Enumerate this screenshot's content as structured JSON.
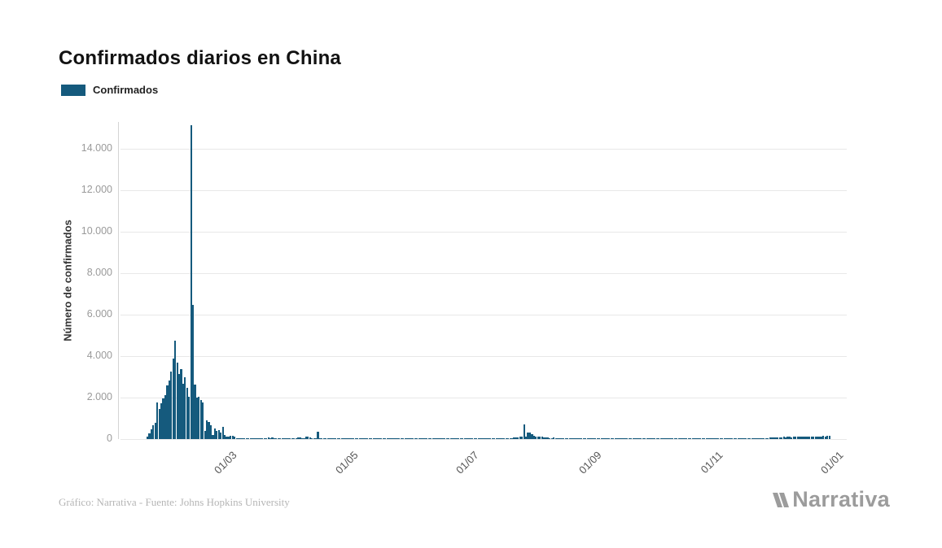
{
  "header": {
    "title": "Confirmados diarios en China"
  },
  "legend": {
    "label": "Confirmados",
    "color": "#155a7d"
  },
  "footer": {
    "credit": "Gráfico: Narrativa - Fuente: Johns Hopkins University",
    "brand": "Narrativa"
  },
  "chart_data": {
    "type": "bar",
    "title": "Confirmados diarios en China",
    "xlabel": "",
    "ylabel": "Número de confirmados",
    "legend_entries": [
      "Confirmados"
    ],
    "legend_position": "top-left",
    "grid": "horizontal",
    "bar_color": "#155a7d",
    "ylim": [
      0,
      15200
    ],
    "y_ticks": [
      {
        "value": 0,
        "label": "0"
      },
      {
        "value": 2000,
        "label": "2.000"
      },
      {
        "value": 4000,
        "label": "4.000"
      },
      {
        "value": 6000,
        "label": "6.000"
      },
      {
        "value": 8000,
        "label": "8.000"
      },
      {
        "value": 10000,
        "label": "10.000"
      },
      {
        "value": 12000,
        "label": "12.000"
      },
      {
        "value": 14000,
        "label": "14.000"
      }
    ],
    "x_ticks": [
      {
        "label": "01/03",
        "day_index": 39
      },
      {
        "label": "01/05",
        "day_index": 100
      },
      {
        "label": "01/07",
        "day_index": 161
      },
      {
        "label": "01/09",
        "day_index": 223
      },
      {
        "label": "01/11",
        "day_index": 284
      },
      {
        "label": "01/01",
        "day_index": 345
      }
    ],
    "series": [
      {
        "name": "Confirmados",
        "values": [
          100,
          260,
          460,
          680,
          780,
          1770,
          1460,
          1740,
          1980,
          2100,
          2590,
          2830,
          3240,
          3890,
          4750,
          3700,
          3140,
          3390,
          2650,
          2970,
          2470,
          2020,
          15152,
          6460,
          2640,
          2010,
          2050,
          1890,
          1750,
          390,
          890,
          820,
          650,
          210,
          510,
          410,
          430,
          330,
          570,
          200,
          125,
          120,
          140,
          145,
          100,
          45,
          40,
          20,
          24,
          15,
          10,
          11,
          20,
          16,
          21,
          13,
          34,
          39,
          41,
          46,
          39,
          78,
          47,
          67,
          55,
          54,
          45,
          31,
          48,
          36,
          35,
          31,
          19,
          30,
          39,
          32,
          62,
          63,
          42,
          46,
          99,
          108,
          89,
          46,
          46,
          26,
          352,
          27,
          12,
          11,
          6,
          10,
          6,
          12,
          3,
          11,
          6,
          22,
          4,
          4,
          12,
          2,
          3,
          3,
          1,
          2,
          1,
          1,
          14,
          17,
          1,
          6,
          3,
          3,
          8,
          5,
          7,
          6,
          6,
          5,
          11,
          4,
          3,
          11,
          7,
          1,
          1,
          4,
          4,
          2,
          16,
          5,
          1,
          1,
          4,
          5,
          5,
          4,
          4,
          3,
          3,
          11,
          7,
          57,
          49,
          40,
          32,
          28,
          32,
          25,
          27,
          18,
          22,
          12,
          14,
          21,
          13,
          17,
          12,
          19,
          3,
          5,
          5,
          2,
          8,
          4,
          4,
          9,
          9,
          4,
          7,
          8,
          8,
          10,
          6,
          11,
          14,
          22,
          22,
          34,
          20,
          14,
          28,
          28,
          34,
          68,
          61,
          68,
          105,
          101,
          689,
          127,
          303,
          295,
          249,
          148,
          132,
          129,
          124,
          118,
          95,
          94,
          61,
          53,
          44,
          60,
          51,
          49,
          44,
          17,
          17,
          27,
          22,
          16,
          26,
          14,
          15,
          8,
          9,
          13,
          9,
          17,
          10,
          10,
          11,
          25,
          10,
          10,
          12,
          10,
          15,
          7,
          11,
          15,
          20,
          10,
          8,
          9,
          32,
          10,
          14,
          10,
          12,
          6,
          9,
          8,
          15,
          15,
          21,
          14,
          19,
          12,
          19,
          12,
          20,
          15,
          21,
          20,
          12,
          11,
          24,
          21,
          15,
          21,
          27,
          20,
          27,
          11,
          24,
          13,
          13,
          19,
          19,
          14,
          28,
          28,
          33,
          42,
          16,
          42,
          47,
          25,
          33,
          24,
          24,
          49,
          17,
          32,
          28,
          33,
          33,
          27,
          33,
          22,
          15,
          8,
          13,
          18,
          22,
          22,
          8,
          12,
          17,
          16,
          22,
          17,
          11,
          21,
          21,
          20,
          21,
          22,
          36,
          24,
          80,
          85,
          75,
          90,
          95,
          85,
          90,
          100,
          95,
          105,
          100,
          95,
          110,
          105,
          115,
          100,
          110,
          120,
          105,
          115,
          110,
          125,
          115,
          130,
          120,
          135,
          125,
          140,
          130,
          150,
          140
        ]
      }
    ]
  }
}
